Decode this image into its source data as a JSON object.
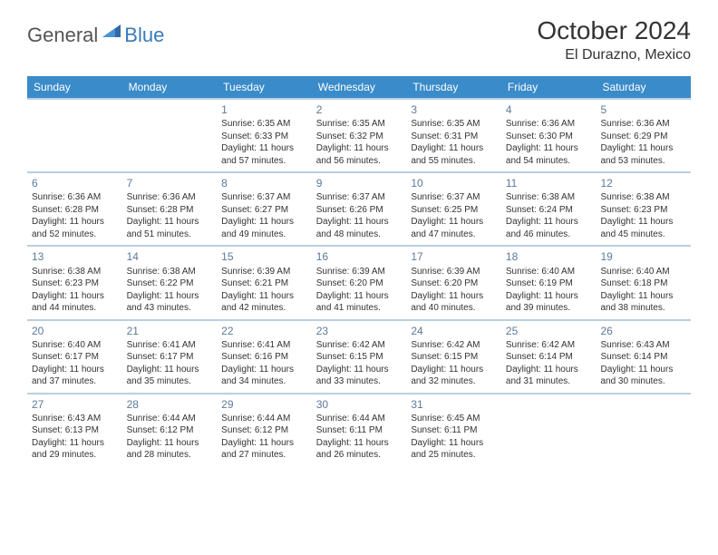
{
  "logo": {
    "general": "General",
    "blue": "Blue"
  },
  "title": "October 2024",
  "location": "El Durazno, Mexico",
  "header_color": "#3a8bc9",
  "divider_color": "#b8cfe4",
  "dayheads": [
    "Sunday",
    "Monday",
    "Tuesday",
    "Wednesday",
    "Thursday",
    "Friday",
    "Saturday"
  ],
  "weeks": [
    [
      {
        "blank": true
      },
      {
        "blank": true
      },
      {
        "n": "1",
        "sr": "Sunrise: 6:35 AM",
        "ss": "Sunset: 6:33 PM",
        "dl": "Daylight: 11 hours and 57 minutes."
      },
      {
        "n": "2",
        "sr": "Sunrise: 6:35 AM",
        "ss": "Sunset: 6:32 PM",
        "dl": "Daylight: 11 hours and 56 minutes."
      },
      {
        "n": "3",
        "sr": "Sunrise: 6:35 AM",
        "ss": "Sunset: 6:31 PM",
        "dl": "Daylight: 11 hours and 55 minutes."
      },
      {
        "n": "4",
        "sr": "Sunrise: 6:36 AM",
        "ss": "Sunset: 6:30 PM",
        "dl": "Daylight: 11 hours and 54 minutes."
      },
      {
        "n": "5",
        "sr": "Sunrise: 6:36 AM",
        "ss": "Sunset: 6:29 PM",
        "dl": "Daylight: 11 hours and 53 minutes."
      }
    ],
    [
      {
        "n": "6",
        "sr": "Sunrise: 6:36 AM",
        "ss": "Sunset: 6:28 PM",
        "dl": "Daylight: 11 hours and 52 minutes."
      },
      {
        "n": "7",
        "sr": "Sunrise: 6:36 AM",
        "ss": "Sunset: 6:28 PM",
        "dl": "Daylight: 11 hours and 51 minutes."
      },
      {
        "n": "8",
        "sr": "Sunrise: 6:37 AM",
        "ss": "Sunset: 6:27 PM",
        "dl": "Daylight: 11 hours and 49 minutes."
      },
      {
        "n": "9",
        "sr": "Sunrise: 6:37 AM",
        "ss": "Sunset: 6:26 PM",
        "dl": "Daylight: 11 hours and 48 minutes."
      },
      {
        "n": "10",
        "sr": "Sunrise: 6:37 AM",
        "ss": "Sunset: 6:25 PM",
        "dl": "Daylight: 11 hours and 47 minutes."
      },
      {
        "n": "11",
        "sr": "Sunrise: 6:38 AM",
        "ss": "Sunset: 6:24 PM",
        "dl": "Daylight: 11 hours and 46 minutes."
      },
      {
        "n": "12",
        "sr": "Sunrise: 6:38 AM",
        "ss": "Sunset: 6:23 PM",
        "dl": "Daylight: 11 hours and 45 minutes."
      }
    ],
    [
      {
        "n": "13",
        "sr": "Sunrise: 6:38 AM",
        "ss": "Sunset: 6:23 PM",
        "dl": "Daylight: 11 hours and 44 minutes."
      },
      {
        "n": "14",
        "sr": "Sunrise: 6:38 AM",
        "ss": "Sunset: 6:22 PM",
        "dl": "Daylight: 11 hours and 43 minutes."
      },
      {
        "n": "15",
        "sr": "Sunrise: 6:39 AM",
        "ss": "Sunset: 6:21 PM",
        "dl": "Daylight: 11 hours and 42 minutes."
      },
      {
        "n": "16",
        "sr": "Sunrise: 6:39 AM",
        "ss": "Sunset: 6:20 PM",
        "dl": "Daylight: 11 hours and 41 minutes."
      },
      {
        "n": "17",
        "sr": "Sunrise: 6:39 AM",
        "ss": "Sunset: 6:20 PM",
        "dl": "Daylight: 11 hours and 40 minutes."
      },
      {
        "n": "18",
        "sr": "Sunrise: 6:40 AM",
        "ss": "Sunset: 6:19 PM",
        "dl": "Daylight: 11 hours and 39 minutes."
      },
      {
        "n": "19",
        "sr": "Sunrise: 6:40 AM",
        "ss": "Sunset: 6:18 PM",
        "dl": "Daylight: 11 hours and 38 minutes."
      }
    ],
    [
      {
        "n": "20",
        "sr": "Sunrise: 6:40 AM",
        "ss": "Sunset: 6:17 PM",
        "dl": "Daylight: 11 hours and 37 minutes."
      },
      {
        "n": "21",
        "sr": "Sunrise: 6:41 AM",
        "ss": "Sunset: 6:17 PM",
        "dl": "Daylight: 11 hours and 35 minutes."
      },
      {
        "n": "22",
        "sr": "Sunrise: 6:41 AM",
        "ss": "Sunset: 6:16 PM",
        "dl": "Daylight: 11 hours and 34 minutes."
      },
      {
        "n": "23",
        "sr": "Sunrise: 6:42 AM",
        "ss": "Sunset: 6:15 PM",
        "dl": "Daylight: 11 hours and 33 minutes."
      },
      {
        "n": "24",
        "sr": "Sunrise: 6:42 AM",
        "ss": "Sunset: 6:15 PM",
        "dl": "Daylight: 11 hours and 32 minutes."
      },
      {
        "n": "25",
        "sr": "Sunrise: 6:42 AM",
        "ss": "Sunset: 6:14 PM",
        "dl": "Daylight: 11 hours and 31 minutes."
      },
      {
        "n": "26",
        "sr": "Sunrise: 6:43 AM",
        "ss": "Sunset: 6:14 PM",
        "dl": "Daylight: 11 hours and 30 minutes."
      }
    ],
    [
      {
        "n": "27",
        "sr": "Sunrise: 6:43 AM",
        "ss": "Sunset: 6:13 PM",
        "dl": "Daylight: 11 hours and 29 minutes."
      },
      {
        "n": "28",
        "sr": "Sunrise: 6:44 AM",
        "ss": "Sunset: 6:12 PM",
        "dl": "Daylight: 11 hours and 28 minutes."
      },
      {
        "n": "29",
        "sr": "Sunrise: 6:44 AM",
        "ss": "Sunset: 6:12 PM",
        "dl": "Daylight: 11 hours and 27 minutes."
      },
      {
        "n": "30",
        "sr": "Sunrise: 6:44 AM",
        "ss": "Sunset: 6:11 PM",
        "dl": "Daylight: 11 hours and 26 minutes."
      },
      {
        "n": "31",
        "sr": "Sunrise: 6:45 AM",
        "ss": "Sunset: 6:11 PM",
        "dl": "Daylight: 11 hours and 25 minutes."
      },
      {
        "blank": true
      },
      {
        "blank": true
      }
    ]
  ]
}
